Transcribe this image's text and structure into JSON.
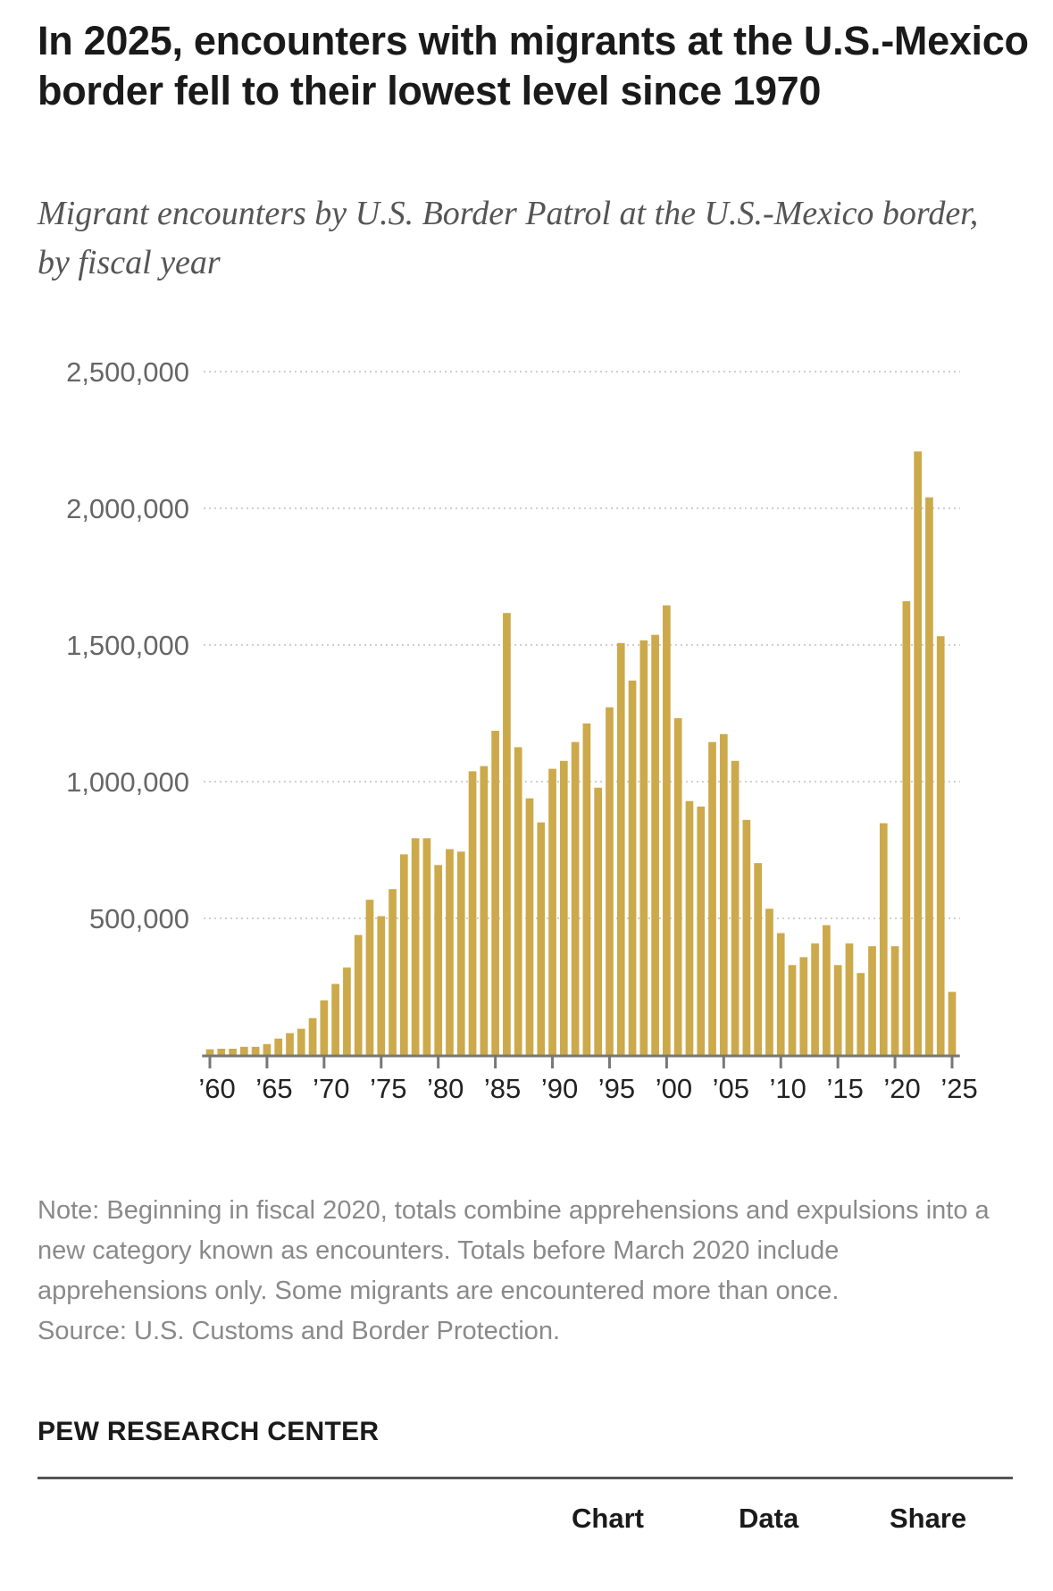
{
  "header": {
    "title": "In 2025, encounters with migrants at the U.S.-Mexico border fell to their lowest level since 1970",
    "subtitle": "Migrant encounters by U.S. Border Patrol at the U.S.-Mexico border, by fiscal year"
  },
  "chart_data": {
    "type": "bar",
    "title": "In 2025, encounters with migrants at the U.S.-Mexico border fell to their lowest level since 1970",
    "subtitle": "Migrant encounters by U.S. Border Patrol at the U.S.-Mexico border, by fiscal year",
    "xlabel": "",
    "ylabel": "",
    "ylim": [
      0,
      2500000
    ],
    "yticks": [
      500000,
      1000000,
      1500000,
      2000000,
      2500000
    ],
    "ytick_labels": [
      "500,000",
      "1,000,000",
      "1,500,000",
      "2,000,000",
      "2,500,000"
    ],
    "xtick_years": [
      1960,
      1965,
      1970,
      1975,
      1980,
      1985,
      1990,
      1995,
      2000,
      2005,
      2010,
      2015,
      2020,
      2025
    ],
    "xtick_labels": [
      "’60",
      "’65",
      "’70",
      "’75",
      "’80",
      "’85",
      "’90",
      "’95",
      "’00",
      "’05",
      "’10",
      "’15",
      "’20",
      "’25"
    ],
    "grid": true,
    "bar_color": "#CCA94A",
    "categories": [
      1960,
      1961,
      1962,
      1963,
      1964,
      1965,
      1966,
      1967,
      1968,
      1969,
      1970,
      1971,
      1972,
      1973,
      1974,
      1975,
      1976,
      1977,
      1978,
      1979,
      1980,
      1981,
      1982,
      1983,
      1984,
      1985,
      1986,
      1987,
      1988,
      1989,
      1990,
      1991,
      1992,
      1993,
      1994,
      1995,
      1996,
      1997,
      1998,
      1999,
      2000,
      2001,
      2002,
      2003,
      2004,
      2005,
      2006,
      2007,
      2008,
      2009,
      2010,
      2011,
      2012,
      2013,
      2014,
      2015,
      2016,
      2017,
      2018,
      2019,
      2020,
      2021,
      2022,
      2023,
      2024,
      2025
    ],
    "values": [
      21000,
      23000,
      23000,
      30000,
      30000,
      40000,
      60000,
      80000,
      96000,
      135000,
      200000,
      260000,
      320000,
      439000,
      568000,
      508000,
      607000,
      734000,
      793000,
      793000,
      695000,
      753000,
      744000,
      1038000,
      1057000,
      1186000,
      1617000,
      1126000,
      939000,
      851000,
      1047000,
      1076000,
      1145000,
      1213000,
      978000,
      1272000,
      1507000,
      1370000,
      1517000,
      1537000,
      1645000,
      1232000,
      929000,
      909000,
      1145000,
      1174000,
      1076000,
      860000,
      702000,
      535000,
      446000,
      329000,
      358000,
      408000,
      475000,
      329000,
      408000,
      300000,
      398000,
      848000,
      398000,
      1660000,
      2208000,
      2040000,
      1532000,
      231000
    ]
  },
  "footer": {
    "note": "Note: Beginning in fiscal 2020, totals combine apprehensions and expulsions into a new category known as encounters. Totals before March 2020 include apprehensions only. Some migrants are encountered more than once.",
    "source": "Source: U.S. Customs and Border Protection.",
    "brand": "PEW RESEARCH CENTER"
  },
  "nav": {
    "chart": "Chart",
    "data": "Data",
    "share": "Share"
  }
}
